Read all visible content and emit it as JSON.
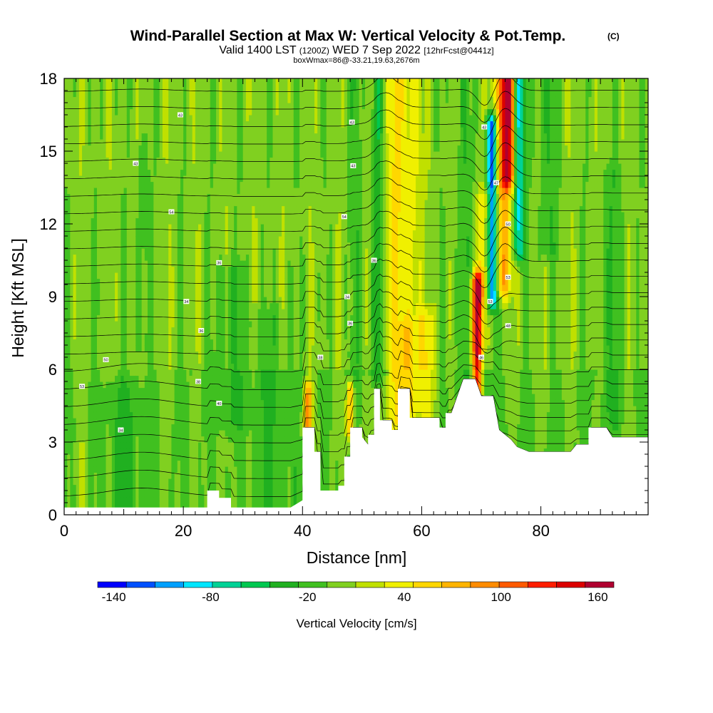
{
  "chart_data": {
    "type": "heatmap",
    "title": "Wind-Parallel Section at Max W: Vertical Velocity & Pot.Temp.",
    "title_suffix": "(C)",
    "subtitle_valid": "Valid 1400 LST",
    "subtitle_utc": "(1200Z)",
    "subtitle_date": "WED 7 Sep 2022",
    "subtitle_fcst": "[12hrFcst@0441z]",
    "subtitle_box": "boxWmax=86@-33.21,19.63,2676m",
    "xlabel": "Distance [nm]",
    "ylabel": "Height [Kft MSL]",
    "xlim": [
      0,
      98
    ],
    "ylim": [
      0,
      18
    ],
    "x_ticks": [
      "0",
      "20",
      "40",
      "60",
      "80"
    ],
    "x_tick_values": [
      0,
      20,
      40,
      60,
      80
    ],
    "y_ticks": [
      "0",
      "3",
      "6",
      "9",
      "12",
      "15",
      "18"
    ],
    "y_tick_values": [
      0,
      3,
      6,
      9,
      12,
      15,
      18
    ],
    "colorbar": {
      "label": "Vertical Velocity [cm/s]",
      "tick_labels": [
        "-140",
        "-80",
        "-20",
        "40",
        "100",
        "160"
      ],
      "tick_values": [
        -140,
        -80,
        -20,
        40,
        100,
        160
      ],
      "range": [
        -150,
        170
      ],
      "colors": [
        "#0000ff",
        "#0050ff",
        "#00a0ff",
        "#00e6ff",
        "#00d296",
        "#00c850",
        "#20b020",
        "#40c020",
        "#80d020",
        "#c0e000",
        "#f0f000",
        "#ffd700",
        "#ffb400",
        "#ff8c00",
        "#ff5a00",
        "#ff1e00",
        "#dc0000",
        "#b00030"
      ]
    },
    "background_w": 0,
    "terrain_profile_kft": [
      [
        0,
        0.3
      ],
      [
        20,
        0.3
      ],
      [
        24,
        0.3
      ],
      [
        24,
        1.0
      ],
      [
        26,
        1.0
      ],
      [
        26,
        0.7
      ],
      [
        28,
        0.7
      ],
      [
        28,
        0.3
      ],
      [
        38,
        0.3
      ],
      [
        40,
        0.6
      ],
      [
        40,
        3.6
      ],
      [
        42,
        3.6
      ],
      [
        42,
        2.6
      ],
      [
        43,
        2.6
      ],
      [
        43,
        1.0
      ],
      [
        46,
        1.0
      ],
      [
        46,
        1.2
      ],
      [
        47,
        1.2
      ],
      [
        47,
        2.4
      ],
      [
        48,
        2.4
      ],
      [
        48,
        3.6
      ],
      [
        50,
        3.6
      ],
      [
        50,
        3.2
      ],
      [
        51,
        2.9
      ],
      [
        51,
        3.3
      ],
      [
        52,
        3.3
      ],
      [
        52,
        5.2
      ],
      [
        53,
        5.2
      ],
      [
        53,
        3.9
      ],
      [
        55,
        3.9
      ],
      [
        55,
        3.5
      ],
      [
        56,
        3.5
      ],
      [
        56,
        5.2
      ],
      [
        58,
        5.2
      ],
      [
        58,
        4.0
      ],
      [
        60,
        4.0
      ],
      [
        63,
        4.0
      ],
      [
        63,
        3.6
      ],
      [
        64,
        3.6
      ],
      [
        64,
        4.2
      ],
      [
        65,
        4.2
      ],
      [
        67,
        5.6
      ],
      [
        69,
        5.6
      ],
      [
        70,
        4.9
      ],
      [
        72,
        4.9
      ],
      [
        73,
        3.5
      ],
      [
        75,
        3.1
      ],
      [
        76,
        2.8
      ],
      [
        78,
        2.6
      ],
      [
        81,
        2.6
      ],
      [
        85,
        2.6
      ],
      [
        86,
        2.9
      ],
      [
        88,
        2.9
      ],
      [
        88,
        3.6
      ],
      [
        91,
        3.6
      ],
      [
        92,
        3.2
      ],
      [
        98,
        3.2
      ]
    ],
    "w_features": [
      {
        "x": 55.5,
        "y0": 3.9,
        "y1": 18,
        "w": 45,
        "sx": 1.8
      },
      {
        "x": 58.5,
        "y0": 4.5,
        "y1": 18,
        "w": 40,
        "sx": 1.4
      },
      {
        "x": 52.5,
        "y0": 6,
        "y1": 18,
        "w": -40,
        "sx": 1.0
      },
      {
        "x": 49,
        "y0": 6,
        "y1": 18,
        "w": -15,
        "sx": 1.3
      },
      {
        "x": 69.3,
        "y0": 5.2,
        "y1": 9.5,
        "w": 160,
        "sx": 0.9
      },
      {
        "x": 70.5,
        "y0": 9,
        "y1": 13,
        "w": 40,
        "sx": 1.2
      },
      {
        "x": 73.5,
        "y0": 9.5,
        "y1": 18,
        "w": 80,
        "sx": 1.5
      },
      {
        "x": 74.5,
        "y0": 14,
        "y1": 18,
        "w": 110,
        "sx": 1.2
      },
      {
        "x": 71.8,
        "y0": 9,
        "y1": 16,
        "w": -140,
        "sx": 0.9
      },
      {
        "x": 76.3,
        "y0": 11,
        "y1": 18,
        "w": -90,
        "sx": 0.9
      },
      {
        "x": 67,
        "y0": 5,
        "y1": 18,
        "w": -20,
        "sx": 1.3
      },
      {
        "x": 81,
        "y0": 11,
        "y1": 18,
        "w": -25,
        "sx": 1.5
      },
      {
        "x": 40.9,
        "y0": 3.6,
        "y1": 5.0,
        "w": 90,
        "sx": 0.7
      },
      {
        "x": 48,
        "y0": 3.6,
        "y1": 5.0,
        "w": 80,
        "sx": 0.6
      },
      {
        "x": 61,
        "y0": 4,
        "y1": 8,
        "w": 40,
        "sx": 1.5
      },
      {
        "x": 57.5,
        "y0": 4,
        "y1": 7.5,
        "w": 30,
        "sx": 1.2
      },
      {
        "x": 70,
        "y0": 3,
        "y1": 6,
        "w": -25,
        "sx": 2
      },
      {
        "x": 13,
        "y0": 7,
        "y1": 15,
        "w": -20,
        "sx": 1.0
      },
      {
        "x": 28,
        "y0": 4,
        "y1": 10,
        "w": -20,
        "sx": 3
      },
      {
        "x": 10,
        "y0": 0.3,
        "y1": 5,
        "w": -20,
        "sx": 3
      },
      {
        "x": 3,
        "y0": 0.3,
        "y1": 2.5,
        "w": 15,
        "sx": 1.5
      },
      {
        "x": 35,
        "y0": 0.3,
        "y1": 8,
        "w": -18,
        "sx": 3
      },
      {
        "x": 92,
        "y0": 4,
        "y1": 14,
        "w": -18,
        "sx": 2
      }
    ],
    "theta_levels_c": [
      40,
      42,
      44,
      46,
      48,
      50,
      52,
      54,
      56,
      58,
      60,
      62,
      64,
      66,
      68,
      70,
      72,
      74,
      76,
      78,
      80,
      82,
      84,
      86
    ],
    "theta_label_points": [
      [
        3,
        5.3,
        "53"
      ],
      [
        7,
        6.4,
        "50"
      ],
      [
        9.5,
        3.5,
        "34"
      ],
      [
        12,
        14.5,
        "43"
      ],
      [
        19.5,
        16.5,
        "43"
      ],
      [
        18,
        12.5,
        "54"
      ],
      [
        20.5,
        8.8,
        "34"
      ],
      [
        23,
        7.6,
        "36"
      ],
      [
        26,
        10.4,
        "36"
      ],
      [
        22.5,
        5.5,
        "38"
      ],
      [
        26,
        4.6,
        "40"
      ],
      [
        43,
        6.5,
        "38"
      ],
      [
        47,
        12.3,
        "54"
      ],
      [
        48.3,
        16.2,
        "43"
      ],
      [
        48.5,
        14.4,
        "43"
      ],
      [
        47.5,
        9.0,
        "34"
      ],
      [
        48,
        7.9,
        "36"
      ],
      [
        52,
        10.5,
        "36"
      ],
      [
        70.5,
        16,
        "43"
      ],
      [
        72.5,
        13.7,
        "47"
      ],
      [
        74.5,
        12,
        "50"
      ],
      [
        74.5,
        9.8,
        "53"
      ],
      [
        71.5,
        8.8,
        "53"
      ],
      [
        74.5,
        7.8,
        "48"
      ],
      [
        70,
        6.5,
        "46"
      ]
    ]
  }
}
